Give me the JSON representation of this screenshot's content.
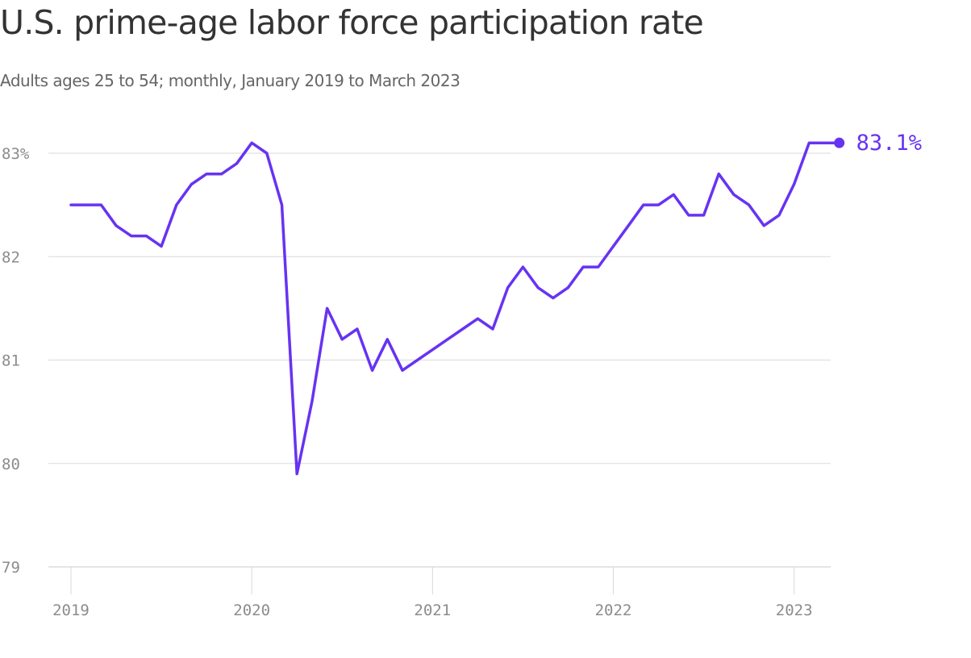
{
  "chart_data": {
    "type": "line",
    "title": "U.S. prime-age labor force participation rate",
    "subtitle": "Adults ages 25 to 54; monthly, January 2019 to March 2023",
    "xlabel": "",
    "ylabel": "",
    "ylim": [
      79,
      83.1
    ],
    "y_ticks": [
      {
        "value": 79,
        "label": "79"
      },
      {
        "value": 80,
        "label": "80"
      },
      {
        "value": 81,
        "label": "81"
      },
      {
        "value": 82,
        "label": "82"
      },
      {
        "value": 83,
        "label": "83%"
      }
    ],
    "x_ticks": [
      {
        "month_index": 0,
        "label": "2019"
      },
      {
        "month_index": 12,
        "label": "2020"
      },
      {
        "month_index": 24,
        "label": "2021"
      },
      {
        "month_index": 36,
        "label": "2022"
      },
      {
        "month_index": 48,
        "label": "2023"
      }
    ],
    "grid": true,
    "legend": "none",
    "color": "#6733f2",
    "end_label": "83.1%",
    "series": [
      {
        "values": [
          82.5,
          82.5,
          82.5,
          82.3,
          82.2,
          82.2,
          82.1,
          82.5,
          82.7,
          82.8,
          82.8,
          82.9,
          83.1,
          83.0,
          82.5,
          79.9,
          80.6,
          81.5,
          81.2,
          81.3,
          80.9,
          81.2,
          80.9,
          81.0,
          81.1,
          81.2,
          81.3,
          81.4,
          81.3,
          81.7,
          81.9,
          81.7,
          81.6,
          81.7,
          81.9,
          81.9,
          82.1,
          82.3,
          82.5,
          82.5,
          82.6,
          82.4,
          82.4,
          82.8,
          82.6,
          82.5,
          82.3,
          82.4,
          82.7,
          83.1,
          83.1,
          83.1
        ]
      }
    ]
  }
}
